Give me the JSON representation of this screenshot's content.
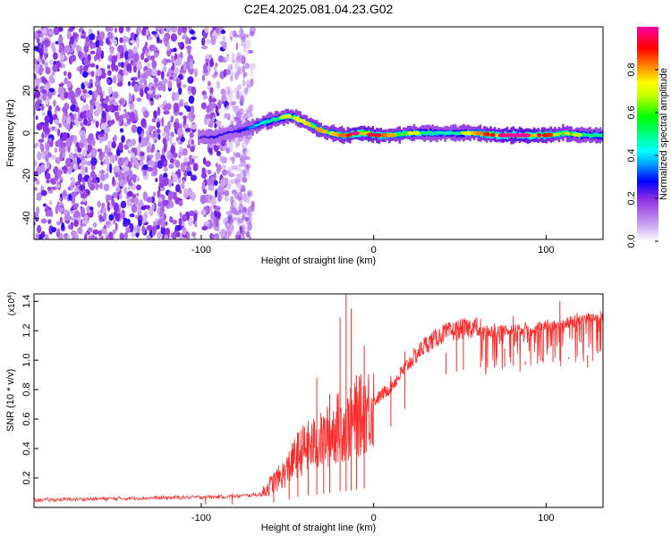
{
  "title": "C2E4.2025.081.04.23.G02",
  "chart_data": [
    {
      "type": "heatmap",
      "xlabel": "Height of straight line (km)",
      "ylabel": "Frequency (Hz)",
      "xlim": [
        -197,
        133
      ],
      "ylim": [
        -50,
        50
      ],
      "x_ticks": [
        -100,
        0,
        100
      ],
      "x_tick_labels": [
        "-100",
        "0",
        "100"
      ],
      "y_ticks": [
        -40,
        -20,
        0,
        20,
        40
      ],
      "y_tick_labels": [
        "-40",
        "-20",
        "0",
        "20",
        "40"
      ],
      "grid": false,
      "colorbar": {
        "label": "Normalized spectral amplitude",
        "range": [
          0,
          1
        ],
        "ticks": [
          0.0,
          0.2,
          0.4,
          0.6,
          0.8
        ],
        "tick_labels": [
          "0.0",
          "0.2",
          "0.4",
          "0.6",
          "0.8"
        ],
        "colormap": [
          "#ffffff",
          "#8a2be2",
          "#0000ff",
          "#00ffff",
          "#00ff00",
          "#ffff00",
          "#ff8000",
          "#ff0000",
          "#ff00a0"
        ]
      },
      "noise_region_x": [
        -197,
        -70
      ],
      "noise_gap_x": [
        -103,
        -99
      ],
      "ridge_frequency_track": {
        "x": [
          -102,
          -95,
          -90,
          -85,
          -80,
          -75,
          -70,
          -65,
          -60,
          -55,
          -50,
          -45,
          -40,
          -35,
          -30,
          -25,
          -20,
          -15,
          -10,
          -5,
          0,
          10,
          20,
          30,
          40,
          50,
          60,
          70,
          80,
          90,
          100,
          110,
          120,
          133
        ],
        "y": [
          -2,
          -2,
          -1,
          0,
          1,
          2,
          3,
          5,
          6,
          7,
          8,
          7,
          5,
          3,
          1,
          0,
          -1,
          -1,
          0,
          0,
          -1,
          -1,
          0,
          0,
          0,
          0,
          0,
          -1,
          -1,
          -1,
          -1,
          0,
          -1,
          -1
        ]
      },
      "ridge_peak_amplitude": {
        "x": [
          -102,
          -95,
          -90,
          -85,
          -80,
          -75,
          -70,
          -65,
          -60,
          -55,
          -50,
          -45,
          -40,
          -35,
          -30,
          -25,
          -20,
          -15,
          -10,
          -5,
          0,
          10,
          20,
          30,
          40,
          50,
          60,
          70,
          80,
          90,
          100,
          110,
          120,
          133
        ],
        "y": [
          0.25,
          0.3,
          0.3,
          0.3,
          0.3,
          0.35,
          0.45,
          0.55,
          0.6,
          0.6,
          0.65,
          0.65,
          0.7,
          0.75,
          0.75,
          0.7,
          0.75,
          0.85,
          0.95,
          0.9,
          0.9,
          0.75,
          0.7,
          0.6,
          0.55,
          0.6,
          0.75,
          0.9,
          0.95,
          0.95,
          0.85,
          0.75,
          0.6,
          0.6
        ]
      }
    },
    {
      "type": "line",
      "xlabel": "Height of straight line (km)",
      "ylabel": "SNR (10 * v/v)",
      "y_scale_label_base": "(x10",
      "y_scale_label_exp": "4",
      "y_scale_label_close": ")",
      "xlim": [
        -197,
        133
      ],
      "ylim": [
        0,
        14500
      ],
      "x_ticks": [
        -100,
        0,
        100
      ],
      "x_tick_labels": [
        "-100",
        "0",
        "100"
      ],
      "y_ticks": [
        2000,
        4000,
        6000,
        8000,
        10000,
        12000,
        14000
      ],
      "y_tick_labels": [
        "0.2",
        "0.4",
        "0.6",
        "0.8",
        "1.0",
        "1.2",
        "1.4"
      ],
      "grid": false,
      "series": [
        {
          "color": "#ff2a2a",
          "envelope_x": [
            -197,
            -150,
            -100,
            -80,
            -65,
            -60,
            -50,
            -45,
            -40,
            -30,
            -25,
            -20,
            -15,
            -10,
            -5,
            0,
            10,
            20,
            30,
            40,
            50,
            60,
            70,
            80,
            90,
            100,
            110,
            120,
            133
          ],
          "envelope_y": [
            500,
            600,
            700,
            750,
            900,
            1500,
            2500,
            3500,
            4000,
            4500,
            5000,
            5500,
            5500,
            6000,
            6500,
            7000,
            8000,
            9500,
            10800,
            11500,
            11800,
            12000,
            12000,
            12100,
            12200,
            12300,
            12500,
            12800,
            13000
          ],
          "spike_x": [
            -97.5,
            -82,
            -58,
            -49,
            -44,
            -38,
            -33,
            -29,
            -25.5,
            -19.5,
            -16,
            -13,
            -10,
            -5.5,
            10,
            18,
            42,
            48,
            52,
            62,
            66,
            70,
            76,
            81,
            88,
            95,
            104,
            108,
            113,
            118,
            124,
            130
          ],
          "spike_y": [
            800,
            950,
            2300,
            3800,
            4200,
            5600,
            8800,
            6000,
            7700,
            12900,
            14600,
            13500,
            9000,
            11000,
            8900,
            10600,
            10500,
            11700,
            12300,
            12800,
            10200,
            12500,
            10800,
            13000,
            9900,
            12000,
            12600,
            14000,
            10200,
            13200,
            9500,
            12800
          ]
        }
      ]
    }
  ]
}
